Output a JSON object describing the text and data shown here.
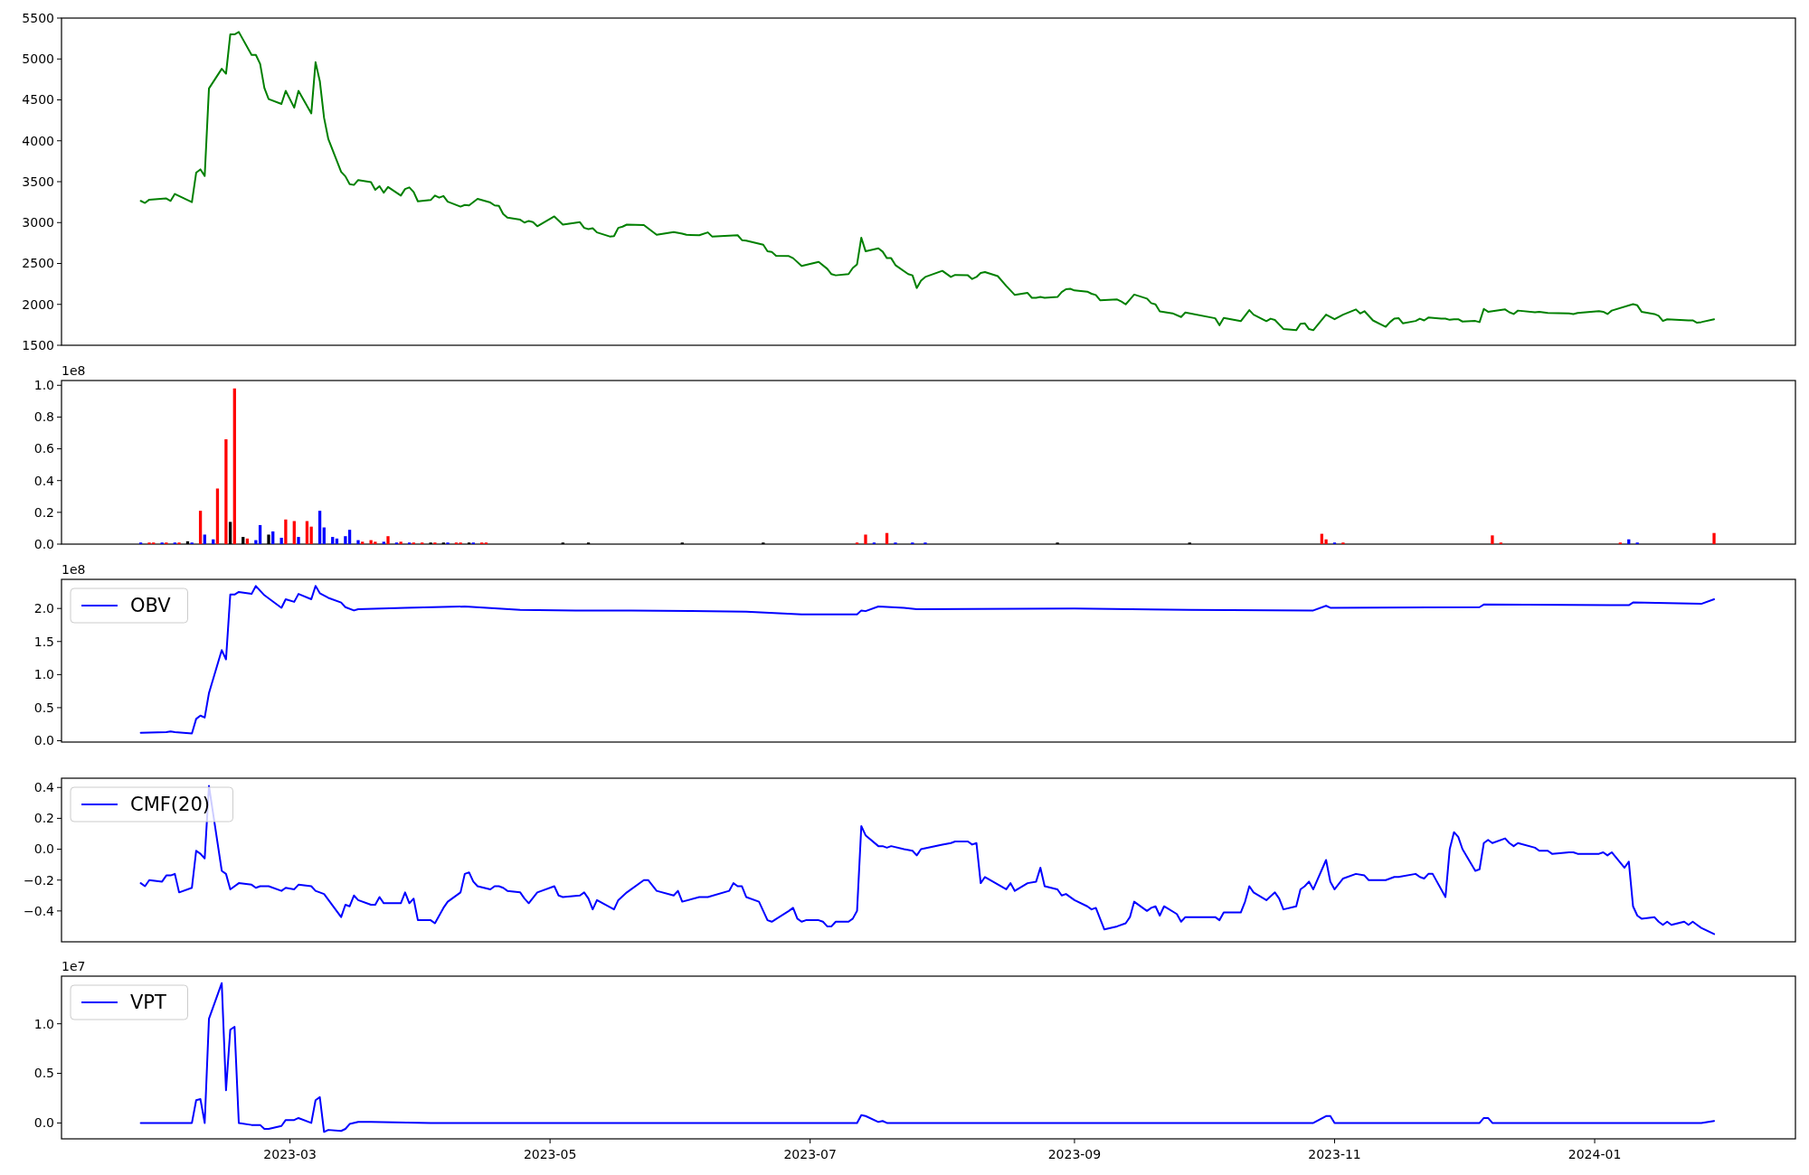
{
  "chart_data": [
    {
      "type": "line",
      "xlim": [
        "2023-01-06T10:00",
        "2024-02-17T02:00"
      ],
      "ylim": [
        1500,
        5500
      ],
      "yticks": [
        1500,
        2000,
        2500,
        3000,
        3500,
        4000,
        4500,
        5000,
        5500
      ],
      "tick_labels": "y",
      "color": "#008000",
      "x": [
        "2023-01-25",
        "2023-01-26",
        "2023-01-27",
        "2023-01-31",
        "2023-02-01",
        "2023-02-02",
        "2023-02-06",
        "2023-02-07",
        "2023-02-08",
        "2023-02-09",
        "2023-02-10",
        "2023-02-13",
        "2023-02-14",
        "2023-02-15",
        "2023-02-16",
        "2023-02-17",
        "2023-02-20",
        "2023-02-21",
        "2023-02-22",
        "2023-02-23",
        "2023-02-24",
        "2023-02-27",
        "2023-02-28",
        "2023-03-02",
        "2023-03-03",
        "2023-03-06",
        "2023-03-07",
        "2023-03-08",
        "2023-03-09",
        "2023-03-10",
        "2023-03-13",
        "2023-03-14",
        "2023-03-15",
        "2023-03-16",
        "2023-03-17",
        "2023-03-20",
        "2023-03-21",
        "2023-03-22",
        "2023-03-23",
        "2023-03-24",
        "2023-03-27",
        "2023-03-28",
        "2023-03-29",
        "2023-03-30",
        "2023-03-31",
        "2023-04-03",
        "2023-04-04",
        "2023-04-05",
        "2023-04-06",
        "2023-04-07",
        "2023-04-10",
        "2023-04-11",
        "2023-04-12",
        "2023-04-14",
        "2023-04-17",
        "2023-04-18",
        "2023-04-19",
        "2023-04-20",
        "2023-04-21",
        "2023-04-24",
        "2023-04-25",
        "2023-04-26",
        "2023-04-27",
        "2023-04-28",
        "2023-05-02",
        "2023-05-04",
        "2023-05-08",
        "2023-05-09",
        "2023-05-10",
        "2023-05-11",
        "2023-05-12",
        "2023-05-15",
        "2023-05-16",
        "2023-05-17",
        "2023-05-18",
        "2023-05-19",
        "2023-05-23",
        "2023-05-26",
        "2023-05-30",
        "2023-06-01",
        "2023-06-02",
        "2023-06-05",
        "2023-06-07",
        "2023-06-08",
        "2023-06-14",
        "2023-06-15",
        "2023-06-16",
        "2023-06-20",
        "2023-06-21",
        "2023-06-22",
        "2023-06-23",
        "2023-06-26",
        "2023-06-27",
        "2023-06-29",
        "2023-07-03",
        "2023-07-05",
        "2023-07-06",
        "2023-07-07",
        "2023-07-10",
        "2023-07-11",
        "2023-07-12",
        "2023-07-13",
        "2023-07-14",
        "2023-07-17",
        "2023-07-18",
        "2023-07-19",
        "2023-07-20",
        "2023-07-21",
        "2023-07-24",
        "2023-07-25",
        "2023-07-26",
        "2023-07-27",
        "2023-07-28",
        "2023-08-01",
        "2023-08-03",
        "2023-08-04",
        "2023-08-07",
        "2023-08-08",
        "2023-08-09",
        "2023-08-10",
        "2023-08-11",
        "2023-08-14",
        "2023-08-16",
        "2023-08-18",
        "2023-08-21",
        "2023-08-22",
        "2023-08-23",
        "2023-08-24",
        "2023-08-25",
        "2023-08-28",
        "2023-08-29",
        "2023-08-30",
        "2023-08-31",
        "2023-09-01",
        "2023-09-04",
        "2023-09-05",
        "2023-09-06",
        "2023-09-07",
        "2023-09-11",
        "2023-09-12",
        "2023-09-13",
        "2023-09-14",
        "2023-09-15",
        "2023-09-18",
        "2023-09-19",
        "2023-09-20",
        "2023-09-21",
        "2023-09-24",
        "2023-09-26",
        "2023-09-27",
        "2023-10-04",
        "2023-10-05",
        "2023-10-06",
        "2023-10-10",
        "2023-10-12",
        "2023-10-13",
        "2023-10-16",
        "2023-10-17",
        "2023-10-18",
        "2023-10-20",
        "2023-10-23",
        "2023-10-24",
        "2023-10-25",
        "2023-10-26",
        "2023-10-27",
        "2023-10-30",
        "2023-11-01",
        "2023-11-03",
        "2023-11-06",
        "2023-11-07",
        "2023-11-08",
        "2023-11-10",
        "2023-11-13",
        "2023-11-14",
        "2023-11-15",
        "2023-11-16",
        "2023-11-17",
        "2023-11-20",
        "2023-11-21",
        "2023-11-22",
        "2023-11-23",
        "2023-11-26",
        "2023-11-27",
        "2023-11-28",
        "2023-11-29",
        "2023-11-30",
        "2023-12-01",
        "2023-12-04",
        "2023-12-05",
        "2023-12-06",
        "2023-12-07",
        "2023-12-11",
        "2023-12-12",
        "2023-12-13",
        "2023-12-14",
        "2023-12-18",
        "2023-12-19",
        "2023-12-21",
        "2023-12-26",
        "2023-12-27",
        "2023-12-28",
        "2024-01-02",
        "2024-01-03",
        "2024-01-04",
        "2024-01-05",
        "2024-01-10",
        "2024-01-11",
        "2024-01-12",
        "2024-01-15",
        "2024-01-16",
        "2024-01-17",
        "2024-01-18",
        "2024-01-23",
        "2024-01-24",
        "2024-01-25",
        "2024-01-26",
        "2024-01-29"
      ],
      "values": [
        3265,
        3240,
        3280,
        3295,
        3265,
        3350,
        3250,
        3610,
        3650,
        3570,
        4640,
        4880,
        4820,
        5300,
        5300,
        5330,
        5050,
        5050,
        4940,
        4645,
        4510,
        4450,
        4610,
        4405,
        4610,
        4335,
        4960,
        4730,
        4280,
        4020,
        3620,
        3565,
        3470,
        3460,
        3520,
        3495,
        3400,
        3445,
        3365,
        3435,
        3330,
        3410,
        3430,
        3375,
        3260,
        3275,
        3330,
        3305,
        3325,
        3255,
        3195,
        3215,
        3210,
        3290,
        3245,
        3210,
        3205,
        3105,
        3060,
        3035,
        3000,
        3020,
        3005,
        2955,
        3075,
        2975,
        3005,
        2935,
        2920,
        2930,
        2880,
        2830,
        2835,
        2935,
        2950,
        2975,
        2970,
        2850,
        2885,
        2865,
        2850,
        2845,
        2880,
        2830,
        2845,
        2785,
        2780,
        2730,
        2650,
        2640,
        2595,
        2590,
        2565,
        2470,
        2520,
        2435,
        2370,
        2355,
        2370,
        2445,
        2490,
        2815,
        2650,
        2685,
        2645,
        2565,
        2565,
        2480,
        2370,
        2355,
        2200,
        2290,
        2335,
        2410,
        2335,
        2360,
        2355,
        2310,
        2335,
        2385,
        2395,
        2345,
        2225,
        2115,
        2140,
        2080,
        2080,
        2090,
        2080,
        2090,
        2150,
        2185,
        2190,
        2170,
        2155,
        2130,
        2115,
        2050,
        2060,
        2035,
        2000,
        2060,
        2120,
        2070,
        2015,
        2000,
        1915,
        1890,
        1845,
        1900,
        1830,
        1745,
        1835,
        1795,
        1930,
        1875,
        1795,
        1825,
        1810,
        1700,
        1684,
        1762,
        1769,
        1698,
        1684,
        1875,
        1818,
        1875,
        1938,
        1889,
        1917,
        1804,
        1726,
        1783,
        1825,
        1832,
        1769,
        1797,
        1825,
        1804,
        1839,
        1825,
        1825,
        1811,
        1818,
        1818,
        1790,
        1797,
        1783,
        1945,
        1910,
        1938,
        1903,
        1882,
        1924,
        1903,
        1910,
        1896,
        1889,
        1882,
        1896,
        1917,
        1910,
        1882,
        1924,
        2002,
        1988,
        1910,
        1882,
        1860,
        1797,
        1818,
        1804,
        1804,
        1776,
        1783,
        1818
      ]
    },
    {
      "type": "bar",
      "xlim": [
        "2023-01-06T10:00",
        "2024-02-17T02:00"
      ],
      "ylim": [
        0,
        1.03
      ],
      "yticks": [
        {
          "value": 0,
          "label": "0.0"
        },
        0.2,
        0.4,
        0.6,
        0.8,
        {
          "value": 1,
          "label": "1.0"
        }
      ],
      "tick_labels": "y",
      "annotations": [
        "1e8"
      ],
      "x": [
        "2023-01-25",
        "2023-01-27",
        "2023-01-28",
        "2023-01-30",
        "2023-01-31",
        "2023-02-02",
        "2023-02-03",
        "2023-02-05",
        "2023-02-06",
        "2023-02-08",
        "2023-02-09",
        "2023-02-11",
        "2023-02-12",
        "2023-02-14",
        "2023-02-15",
        "2023-02-16",
        "2023-02-18",
        "2023-02-19",
        "2023-02-21",
        "2023-02-22",
        "2023-02-24",
        "2023-02-25",
        "2023-02-27",
        "2023-02-28",
        "2023-03-02",
        "2023-03-03",
        "2023-03-05",
        "2023-03-06",
        "2023-03-08",
        "2023-03-09",
        "2023-03-11",
        "2023-03-12",
        "2023-03-14",
        "2023-03-15",
        "2023-03-17",
        "2023-03-18",
        "2023-03-20",
        "2023-03-21",
        "2023-03-23",
        "2023-03-24",
        "2023-03-26",
        "2023-03-27",
        "2023-03-29",
        "2023-03-30",
        "2023-04-01",
        "2023-04-03",
        "2023-04-04",
        "2023-04-06",
        "2023-04-07",
        "2023-04-09",
        "2023-04-10",
        "2023-04-12",
        "2023-04-13",
        "2023-04-15",
        "2023-04-16",
        "2023-05-04",
        "2023-05-10",
        "2023-06-01",
        "2023-06-20",
        "2023-07-12",
        "2023-07-14",
        "2023-07-16",
        "2023-07-19",
        "2023-07-21",
        "2023-07-25",
        "2023-07-28",
        "2023-08-28",
        "2023-09-28",
        "2023-10-29",
        "2023-10-30",
        "2023-11-01",
        "2023-11-03",
        "2023-12-08",
        "2023-12-10",
        "2024-01-07",
        "2024-01-09",
        "2024-01-11",
        "2024-01-29"
      ],
      "values": [
        0.01,
        0.01,
        0.01,
        0.01,
        0.01,
        0.01,
        0.01,
        0.018,
        0.01,
        0.21,
        0.06,
        0.03,
        0.35,
        0.66,
        0.14,
        0.98,
        0.045,
        0.035,
        0.025,
        0.12,
        0.06,
        0.08,
        0.04,
        0.155,
        0.145,
        0.045,
        0.145,
        0.11,
        0.21,
        0.105,
        0.045,
        0.035,
        0.05,
        0.09,
        0.025,
        0.015,
        0.025,
        0.015,
        0.015,
        0.05,
        0.01,
        0.015,
        0.01,
        0.01,
        0.01,
        0.01,
        0.01,
        0.01,
        0.01,
        0.01,
        0.01,
        0.01,
        0.01,
        0.01,
        0.01,
        0.01,
        0.01,
        0.01,
        0.01,
        0.01,
        0.06,
        0.01,
        0.07,
        0.01,
        0.01,
        0.01,
        0.01,
        0.01,
        0.065,
        0.03,
        0.01,
        0.01,
        0.055,
        0.01,
        0.01,
        0.03,
        0.01,
        0.07
      ],
      "colors": [
        "#0000ff",
        "#ff0000",
        "#ff0000",
        "#0000ff",
        "#ff0000",
        "#0000ff",
        "#ff0000",
        "#000000",
        "#0000ff",
        "#ff0000",
        "#0000ff",
        "#0000ff",
        "#ff0000",
        "#ff0000",
        "#000000",
        "#ff0000",
        "#000000",
        "#ff0000",
        "#0000ff",
        "#0000ff",
        "#000000",
        "#0000ff",
        "#0000ff",
        "#ff0000",
        "#ff0000",
        "#0000ff",
        "#ff0000",
        "#ff0000",
        "#0000ff",
        "#0000ff",
        "#0000ff",
        "#0000ff",
        "#0000ff",
        "#0000ff",
        "#0000ff",
        "#ff0000",
        "#ff0000",
        "#ff0000",
        "#0000ff",
        "#ff0000",
        "#0000ff",
        "#ff0000",
        "#0000ff",
        "#ff0000",
        "#ff0000",
        "#000000",
        "#ff0000",
        "#000000",
        "#0000ff",
        "#ff0000",
        "#ff0000",
        "#000000",
        "#0000ff",
        "#ff0000",
        "#ff0000",
        "#000000",
        "#000000",
        "#000000",
        "#000000",
        "#ff0000",
        "#ff0000",
        "#0000ff",
        "#ff0000",
        "#0000ff",
        "#0000ff",
        "#0000ff",
        "#000000",
        "#000000",
        "#ff0000",
        "#ff0000",
        "#0000ff",
        "#ff0000",
        "#ff0000",
        "#ff0000",
        "#ff0000",
        "#0000ff",
        "#0000ff",
        "#ff0000"
      ]
    },
    {
      "type": "line",
      "xlim": [
        "2023-01-06T10:00",
        "2024-02-17T02:00"
      ],
      "ylim": [
        -0.02,
        2.44
      ],
      "yticks": [
        {
          "value": 0,
          "label": "0.0"
        },
        0.5,
        {
          "value": 1,
          "label": "1.0"
        },
        1.5,
        {
          "value": 2,
          "label": "2.0"
        }
      ],
      "tick_labels": "y",
      "legend": "top left",
      "annotations": [
        "1e8"
      ],
      "x": [
        "2023-01-25",
        "2023-01-31",
        "2023-02-01",
        "2023-02-02",
        "2023-02-06",
        "2023-02-07",
        "2023-02-08",
        "2023-02-09",
        "2023-02-10",
        "2023-02-13",
        "2023-02-14",
        "2023-02-15",
        "2023-02-16",
        "2023-02-17",
        "2023-02-20",
        "2023-02-21",
        "2023-02-23",
        "2023-02-27",
        "2023-02-28",
        "2023-03-02",
        "2023-03-03",
        "2023-03-06",
        "2023-03-07",
        "2023-03-08",
        "2023-03-10",
        "2023-03-13",
        "2023-03-14",
        "2023-03-16",
        "2023-03-17",
        "2023-03-28",
        "2023-04-11",
        "2023-04-24",
        "2023-05-07",
        "2023-05-20",
        "2023-06-03",
        "2023-06-16",
        "2023-06-29",
        "2023-07-12",
        "2023-07-13",
        "2023-07-14",
        "2023-07-17",
        "2023-07-23",
        "2023-07-26",
        "2023-09-01",
        "2023-09-28",
        "2023-10-27",
        "2023-10-30",
        "2023-10-31",
        "2023-12-05",
        "2023-12-06",
        "2024-01-09",
        "2024-01-10",
        "2024-01-26",
        "2024-01-29"
      ],
      "series": [
        {
          "name": "OBV",
          "color": "#0000ff",
          "values": [
            0.12,
            0.13,
            0.14,
            0.13,
            0.11,
            0.33,
            0.38,
            0.35,
            0.72,
            1.37,
            1.23,
            2.21,
            2.21,
            2.25,
            2.22,
            2.34,
            2.2,
            2.01,
            2.14,
            2.1,
            2.22,
            2.14,
            2.34,
            2.23,
            2.16,
            2.09,
            2.02,
            1.97,
            1.99,
            2.01,
            2.03,
            1.98,
            1.97,
            1.97,
            1.96,
            1.95,
            1.91,
            1.91,
            1.97,
            1.96,
            2.03,
            2.01,
            1.99,
            2.0,
            1.98,
            1.97,
            2.04,
            2.01,
            2.02,
            2.06,
            2.05,
            2.09,
            2.07,
            2.14
          ]
        }
      ]
    },
    {
      "type": "line",
      "xlim": [
        "2023-01-06T10:00",
        "2024-02-17T02:00"
      ],
      "ylim": [
        -0.6,
        0.46
      ],
      "yticks": [
        {
          "value": -0.4,
          "label": "−0.4"
        },
        {
          "value": -0.2,
          "label": "−0.2"
        },
        {
          "value": 0,
          "label": "0.0"
        },
        0.2,
        0.4
      ],
      "tick_labels": "y",
      "legend": "top left",
      "x": [
        "2023-01-25",
        "2023-01-26",
        "2023-01-27",
        "2023-01-30",
        "2023-01-31",
        "2023-02-01",
        "2023-02-02",
        "2023-02-03",
        "2023-02-06",
        "2023-02-07",
        "2023-02-08",
        "2023-02-09",
        "2023-02-10",
        "2023-02-13",
        "2023-02-14",
        "2023-02-15",
        "2023-02-17",
        "2023-02-20",
        "2023-02-21",
        "2023-02-22",
        "2023-02-24",
        "2023-02-27",
        "2023-02-28",
        "2023-03-02",
        "2023-03-03",
        "2023-03-06",
        "2023-03-07",
        "2023-03-09",
        "2023-03-13",
        "2023-03-14",
        "2023-03-15",
        "2023-03-16",
        "2023-03-17",
        "2023-03-20",
        "2023-03-21",
        "2023-03-22",
        "2023-03-23",
        "2023-03-27",
        "2023-03-28",
        "2023-03-29",
        "2023-03-30",
        "2023-03-31",
        "2023-04-03",
        "2023-04-04",
        "2023-04-06",
        "2023-04-07",
        "2023-04-10",
        "2023-04-11",
        "2023-04-12",
        "2023-04-13",
        "2023-04-14",
        "2023-04-17",
        "2023-04-18",
        "2023-04-19",
        "2023-04-20",
        "2023-04-21",
        "2023-04-24",
        "2023-04-25",
        "2023-04-26",
        "2023-04-28",
        "2023-05-02",
        "2023-05-03",
        "2023-05-04",
        "2023-05-08",
        "2023-05-09",
        "2023-05-10",
        "2023-05-11",
        "2023-05-12",
        "2023-05-16",
        "2023-05-17",
        "2023-05-19",
        "2023-05-23",
        "2023-05-24",
        "2023-05-26",
        "2023-05-30",
        "2023-05-31",
        "2023-06-01",
        "2023-06-05",
        "2023-06-07",
        "2023-06-12",
        "2023-06-13",
        "2023-06-14",
        "2023-06-15",
        "2023-06-16",
        "2023-06-19",
        "2023-06-20",
        "2023-06-21",
        "2023-06-22",
        "2023-06-26",
        "2023-06-27",
        "2023-06-28",
        "2023-06-29",
        "2023-06-30",
        "2023-07-03",
        "2023-07-04",
        "2023-07-05",
        "2023-07-06",
        "2023-07-07",
        "2023-07-10",
        "2023-07-11",
        "2023-07-12",
        "2023-07-13",
        "2023-07-14",
        "2023-07-17",
        "2023-07-18",
        "2023-07-19",
        "2023-07-20",
        "2023-07-23",
        "2023-07-25",
        "2023-07-26",
        "2023-07-27",
        "2023-08-01",
        "2023-08-03",
        "2023-08-04",
        "2023-08-07",
        "2023-08-08",
        "2023-08-09",
        "2023-08-10",
        "2023-08-11",
        "2023-08-16",
        "2023-08-17",
        "2023-08-18",
        "2023-08-21",
        "2023-08-23",
        "2023-08-24",
        "2023-08-25",
        "2023-08-28",
        "2023-08-29",
        "2023-08-30",
        "2023-09-01",
        "2023-09-04",
        "2023-09-05",
        "2023-09-06",
        "2023-09-08",
        "2023-09-11",
        "2023-09-13",
        "2023-09-14",
        "2023-09-15",
        "2023-09-18",
        "2023-09-19",
        "2023-09-20",
        "2023-09-21",
        "2023-09-22",
        "2023-09-25",
        "2023-09-26",
        "2023-09-27",
        "2023-10-04",
        "2023-10-05",
        "2023-10-06",
        "2023-10-10",
        "2023-10-11",
        "2023-10-12",
        "2023-10-13",
        "2023-10-16",
        "2023-10-18",
        "2023-10-19",
        "2023-10-20",
        "2023-10-23",
        "2023-10-24",
        "2023-10-25",
        "2023-10-26",
        "2023-10-27",
        "2023-10-30",
        "2023-10-31",
        "2023-11-01",
        "2023-11-03",
        "2023-11-06",
        "2023-11-08",
        "2023-11-09",
        "2023-11-10",
        "2023-11-13",
        "2023-11-15",
        "2023-11-16",
        "2023-11-20",
        "2023-11-21",
        "2023-11-22",
        "2023-11-23",
        "2023-11-24",
        "2023-11-27",
        "2023-11-28",
        "2023-11-29",
        "2023-11-30",
        "2023-12-01",
        "2023-12-04",
        "2023-12-05",
        "2023-12-06",
        "2023-12-07",
        "2023-12-08",
        "2023-12-11",
        "2023-12-12",
        "2023-12-13",
        "2023-12-14",
        "2023-12-18",
        "2023-12-19",
        "2023-12-21",
        "2023-12-22",
        "2023-12-26",
        "2023-12-27",
        "2023-12-28",
        "2024-01-02",
        "2024-01-03",
        "2024-01-04",
        "2024-01-05",
        "2024-01-08",
        "2024-01-09",
        "2024-01-10",
        "2024-01-11",
        "2024-01-12",
        "2024-01-15",
        "2024-01-16",
        "2024-01-17",
        "2024-01-18",
        "2024-01-19",
        "2024-01-22",
        "2024-01-23",
        "2024-01-24",
        "2024-01-25",
        "2024-01-26",
        "2024-01-29"
      ],
      "series": [
        {
          "name": "CMF(20)",
          "color": "#0000ff",
          "values": [
            -0.22,
            -0.24,
            -0.2,
            -0.21,
            -0.17,
            -0.17,
            -0.16,
            -0.28,
            -0.25,
            -0.01,
            -0.03,
            -0.06,
            0.41,
            -0.14,
            -0.16,
            -0.26,
            -0.22,
            -0.23,
            -0.25,
            -0.24,
            -0.24,
            -0.27,
            -0.25,
            -0.26,
            -0.23,
            -0.24,
            -0.27,
            -0.29,
            -0.44,
            -0.36,
            -0.37,
            -0.3,
            -0.33,
            -0.36,
            -0.36,
            -0.31,
            -0.35,
            -0.35,
            -0.28,
            -0.35,
            -0.32,
            -0.46,
            -0.46,
            -0.48,
            -0.38,
            -0.34,
            -0.28,
            -0.16,
            -0.15,
            -0.21,
            -0.24,
            -0.26,
            -0.24,
            -0.24,
            -0.25,
            -0.27,
            -0.28,
            -0.32,
            -0.35,
            -0.28,
            -0.24,
            -0.3,
            -0.31,
            -0.3,
            -0.28,
            -0.32,
            -0.39,
            -0.33,
            -0.39,
            -0.33,
            -0.28,
            -0.2,
            -0.2,
            -0.27,
            -0.3,
            -0.27,
            -0.34,
            -0.31,
            -0.31,
            -0.27,
            -0.22,
            -0.24,
            -0.24,
            -0.31,
            -0.34,
            -0.4,
            -0.46,
            -0.47,
            -0.4,
            -0.38,
            -0.45,
            -0.47,
            -0.46,
            -0.46,
            -0.47,
            -0.5,
            -0.5,
            -0.47,
            -0.47,
            -0.45,
            -0.4,
            0.15,
            0.09,
            0.02,
            0.02,
            0.01,
            0.02,
            0.0,
            -0.01,
            -0.04,
            0.0,
            0.03,
            0.04,
            0.05,
            0.05,
            0.03,
            0.04,
            -0.22,
            -0.18,
            -0.26,
            -0.22,
            -0.27,
            -0.22,
            -0.21,
            -0.12,
            -0.24,
            -0.26,
            -0.3,
            -0.29,
            -0.33,
            -0.37,
            -0.39,
            -0.38,
            -0.52,
            -0.5,
            -0.48,
            -0.44,
            -0.34,
            -0.4,
            -0.38,
            -0.37,
            -0.43,
            -0.37,
            -0.42,
            -0.47,
            -0.44,
            -0.44,
            -0.46,
            -0.41,
            -0.41,
            -0.34,
            -0.24,
            -0.28,
            -0.33,
            -0.28,
            -0.32,
            -0.39,
            -0.37,
            -0.26,
            -0.24,
            -0.21,
            -0.26,
            -0.07,
            -0.21,
            -0.26,
            -0.19,
            -0.16,
            -0.17,
            -0.2,
            -0.2,
            -0.2,
            -0.18,
            -0.18,
            -0.16,
            -0.18,
            -0.19,
            -0.16,
            -0.16,
            -0.31,
            0.0,
            0.11,
            0.08,
            0.0,
            -0.14,
            -0.13,
            0.04,
            0.06,
            0.04,
            0.07,
            0.04,
            0.02,
            0.04,
            0.01,
            -0.01,
            -0.01,
            -0.03,
            -0.02,
            -0.02,
            -0.03,
            -0.03,
            -0.02,
            -0.04,
            -0.02,
            -0.12,
            -0.08,
            -0.37,
            -0.43,
            -0.45,
            -0.44,
            -0.47,
            -0.49,
            -0.47,
            -0.49,
            -0.47,
            -0.49,
            -0.47,
            -0.49,
            -0.51,
            -0.55
          ]
        }
      ]
    },
    {
      "type": "line",
      "xlim": [
        "2023-01-06T10:00",
        "2024-02-17T02:00"
      ],
      "ylim": [
        -0.16,
        1.48
      ],
      "yticks": [
        {
          "value": 0,
          "label": "0.0"
        },
        0.5,
        {
          "value": 1,
          "label": "1.0"
        }
      ],
      "xticks": [
        {
          "value": "2023-03-01",
          "label": "2023-03"
        },
        {
          "value": "2023-05-01",
          "label": "2023-05"
        },
        {
          "value": "2023-07-01",
          "label": "2023-07"
        },
        {
          "value": "2023-09-01",
          "label": "2023-09"
        },
        {
          "value": "2023-11-01",
          "label": "2023-11"
        },
        {
          "value": "2024-01-01",
          "label": "2024-01"
        }
      ],
      "legend": "top left",
      "annotations": [
        "1e7"
      ],
      "x": [
        "2023-01-25",
        "2023-02-06",
        "2023-02-07",
        "2023-02-08",
        "2023-02-09",
        "2023-02-10",
        "2023-02-13",
        "2023-02-14",
        "2023-02-15",
        "2023-02-16",
        "2023-02-17",
        "2023-02-20",
        "2023-02-22",
        "2023-02-23",
        "2023-02-24",
        "2023-02-27",
        "2023-02-28",
        "2023-03-02",
        "2023-03-03",
        "2023-03-06",
        "2023-03-07",
        "2023-03-08",
        "2023-03-09",
        "2023-03-10",
        "2023-03-13",
        "2023-03-14",
        "2023-03-15",
        "2023-03-17",
        "2023-03-20",
        "2023-04-03",
        "2023-05-02",
        "2023-06-01",
        "2023-07-03",
        "2023-07-12",
        "2023-07-13",
        "2023-07-14",
        "2023-07-17",
        "2023-07-18",
        "2023-07-19",
        "2023-08-01",
        "2023-09-01",
        "2023-10-02",
        "2023-10-27",
        "2023-10-30",
        "2023-10-31",
        "2023-11-01",
        "2023-11-15",
        "2023-12-05",
        "2023-12-06",
        "2023-12-07",
        "2023-12-08",
        "2023-12-20",
        "2024-01-10",
        "2024-01-26",
        "2024-01-29"
      ],
      "series": [
        {
          "name": "VPT",
          "color": "#0000ff",
          "values": [
            0.0,
            0.0,
            0.23,
            0.24,
            0.0,
            1.05,
            1.41,
            0.33,
            0.94,
            0.97,
            0.0,
            -0.02,
            -0.02,
            -0.06,
            -0.06,
            -0.03,
            0.03,
            0.03,
            0.05,
            0.0,
            0.23,
            0.26,
            -0.09,
            -0.07,
            -0.08,
            -0.06,
            -0.01,
            0.01,
            0.01,
            0.0,
            0.0,
            0.0,
            0.0,
            0.0,
            0.08,
            0.07,
            0.01,
            0.02,
            0.0,
            0.0,
            0.0,
            0.0,
            0.0,
            0.07,
            0.07,
            0.0,
            0.0,
            0.0,
            0.05,
            0.05,
            0.0,
            0.0,
            0.0,
            0.0,
            0.02
          ]
        }
      ]
    }
  ]
}
